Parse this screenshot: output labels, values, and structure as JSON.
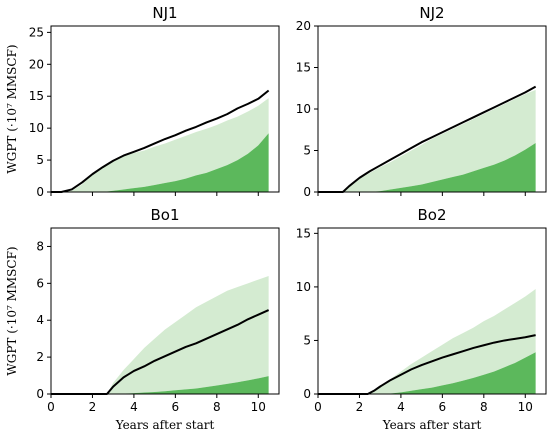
{
  "colors": {
    "light_band": "#d4ebd1",
    "dark_band": "#5cb85c",
    "line": "#000000"
  },
  "chart_data": [
    {
      "type": "area",
      "title": "NJ1",
      "xlabel": "",
      "ylabel": "WGPT (·10⁷ MMSCF)",
      "xlim": [
        0,
        11
      ],
      "ylim": [
        0,
        26
      ],
      "xticks": [
        0,
        2,
        4,
        6,
        8,
        10
      ],
      "yticks": [
        0,
        5,
        10,
        15,
        20,
        25
      ],
      "show_xticklabels": false,
      "x": [
        0,
        0.5,
        1,
        1.5,
        2,
        2.5,
        3,
        3.5,
        4,
        4.5,
        5,
        5.5,
        6,
        6.5,
        7,
        7.5,
        8,
        8.5,
        9,
        9.5,
        10,
        10.5
      ],
      "series": [
        {
          "role": "band_upper",
          "values": [
            0,
            0,
            0.2,
            1.2,
            2.8,
            3.9,
            4.8,
            5.6,
            6.1,
            6.5,
            7.1,
            7.6,
            8.2,
            8.8,
            9.4,
            9.9,
            10.5,
            11.2,
            11.8,
            12.6,
            13.5,
            14.7
          ]
        },
        {
          "role": "band_lower",
          "values": [
            0,
            0,
            0,
            0,
            0,
            0,
            0.2,
            0.4,
            0.6,
            0.8,
            1.1,
            1.4,
            1.7,
            2.1,
            2.6,
            3.0,
            3.6,
            4.2,
            5.0,
            6.0,
            7.3,
            9.2
          ]
        },
        {
          "role": "median",
          "values": [
            0,
            0,
            0.4,
            1.5,
            2.8,
            3.9,
            4.9,
            5.7,
            6.3,
            6.9,
            7.6,
            8.3,
            8.9,
            9.6,
            10.2,
            10.9,
            11.5,
            12.2,
            13.1,
            13.8,
            14.6,
            15.9
          ]
        }
      ]
    },
    {
      "type": "area",
      "title": "NJ2",
      "xlabel": "",
      "ylabel": "",
      "xlim": [
        0,
        11
      ],
      "ylim": [
        0,
        20
      ],
      "xticks": [
        0,
        2,
        4,
        6,
        8,
        10
      ],
      "yticks": [
        0,
        5,
        10,
        15,
        20
      ],
      "show_xticklabels": false,
      "x": [
        0,
        0.5,
        1,
        1.2,
        1.5,
        2,
        2.5,
        3,
        3.5,
        4,
        4.5,
        5,
        5.5,
        6,
        6.5,
        7,
        7.5,
        8,
        8.5,
        9,
        9.5,
        10,
        10.5
      ],
      "series": [
        {
          "role": "band_upper",
          "values": [
            0,
            0,
            0,
            0,
            0.7,
            1.6,
            2.3,
            3.0,
            3.6,
            4.3,
            5.0,
            5.7,
            6.4,
            7.0,
            7.6,
            8.2,
            8.8,
            9.4,
            10.0,
            10.6,
            11.2,
            11.8,
            12.3
          ]
        },
        {
          "role": "band_lower",
          "values": [
            0,
            0,
            0,
            0,
            0,
            0,
            0,
            0.1,
            0.3,
            0.5,
            0.7,
            0.9,
            1.2,
            1.5,
            1.8,
            2.1,
            2.5,
            2.9,
            3.3,
            3.8,
            4.4,
            5.1,
            5.9
          ]
        },
        {
          "role": "median",
          "values": [
            0,
            0,
            0,
            0,
            0.7,
            1.7,
            2.5,
            3.2,
            3.9,
            4.6,
            5.3,
            6.0,
            6.6,
            7.2,
            7.8,
            8.4,
            9.0,
            9.6,
            10.2,
            10.8,
            11.4,
            12.0,
            12.7
          ]
        }
      ]
    },
    {
      "type": "area",
      "title": "Bo1",
      "xlabel": "Years after start",
      "ylabel": "WGPT (·10⁷ MMSCF)",
      "xlim": [
        0,
        11
      ],
      "ylim": [
        0,
        9
      ],
      "xticks": [
        0,
        2,
        4,
        6,
        8,
        10
      ],
      "yticks": [
        0,
        2,
        4,
        6,
        8
      ],
      "show_xticklabels": true,
      "x": [
        0,
        0.5,
        1,
        1.5,
        2,
        2.5,
        2.7,
        3,
        3.5,
        4,
        4.5,
        5,
        5.5,
        6,
        6.5,
        7,
        7.5,
        8,
        8.5,
        9,
        9.5,
        10,
        10.5
      ],
      "series": [
        {
          "role": "band_upper",
          "values": [
            0,
            0,
            0,
            0,
            0,
            0,
            0,
            0.6,
            1.3,
            1.9,
            2.5,
            3.0,
            3.5,
            3.9,
            4.3,
            4.7,
            5.0,
            5.3,
            5.6,
            5.8,
            6.0,
            6.2,
            6.4
          ]
        },
        {
          "role": "band_lower",
          "values": [
            0,
            0,
            0,
            0,
            0,
            0,
            0,
            0,
            0.02,
            0.05,
            0.08,
            0.11,
            0.15,
            0.2,
            0.25,
            0.3,
            0.38,
            0.46,
            0.55,
            0.64,
            0.74,
            0.85,
            0.97
          ]
        },
        {
          "role": "median",
          "values": [
            0,
            0,
            0,
            0,
            0,
            0,
            0,
            0.4,
            0.9,
            1.25,
            1.5,
            1.8,
            2.05,
            2.3,
            2.55,
            2.75,
            3.0,
            3.25,
            3.5,
            3.75,
            4.05,
            4.3,
            4.55
          ]
        }
      ]
    },
    {
      "type": "area",
      "title": "Bo2",
      "xlabel": "Years after start",
      "ylabel": "",
      "xlim": [
        0,
        11
      ],
      "ylim": [
        0,
        15.5
      ],
      "xticks": [
        0,
        2,
        4,
        6,
        8,
        10
      ],
      "yticks": [
        0,
        5,
        10,
        15
      ],
      "show_xticklabels": true,
      "x": [
        0,
        0.5,
        1,
        1.5,
        2,
        2.4,
        2.7,
        3,
        3.5,
        4,
        4.5,
        5,
        5.5,
        6,
        6.5,
        7,
        7.5,
        8,
        8.5,
        9,
        9.5,
        10,
        10.5
      ],
      "series": [
        {
          "role": "band_upper",
          "values": [
            0,
            0,
            0,
            0,
            0,
            0,
            0.3,
            0.7,
            1.4,
            2.1,
            2.8,
            3.4,
            4.0,
            4.6,
            5.2,
            5.7,
            6.2,
            6.8,
            7.3,
            7.9,
            8.5,
            9.1,
            9.8
          ]
        },
        {
          "role": "band_lower",
          "values": [
            0,
            0,
            0,
            0,
            0,
            0,
            0,
            0,
            0.05,
            0.15,
            0.3,
            0.45,
            0.6,
            0.8,
            1.0,
            1.25,
            1.5,
            1.8,
            2.1,
            2.5,
            2.9,
            3.4,
            3.9
          ]
        },
        {
          "role": "median",
          "values": [
            0,
            0,
            0,
            0,
            0,
            0,
            0.3,
            0.7,
            1.3,
            1.8,
            2.3,
            2.7,
            3.05,
            3.4,
            3.7,
            4.0,
            4.3,
            4.55,
            4.8,
            5.0,
            5.15,
            5.3,
            5.5
          ]
        }
      ]
    }
  ]
}
